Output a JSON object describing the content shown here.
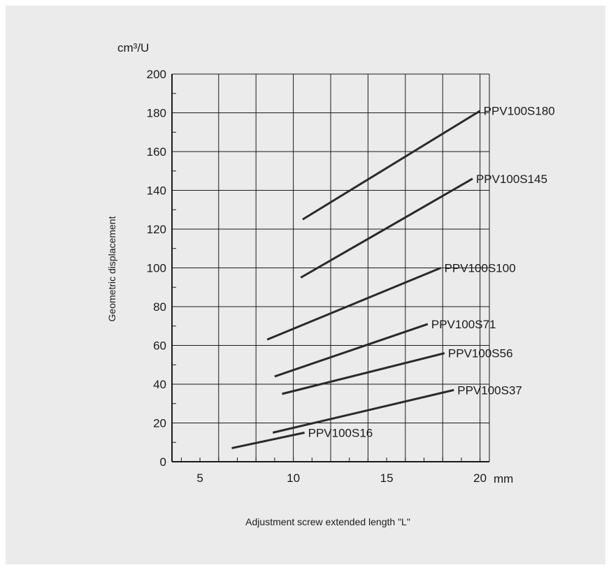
{
  "chart_data": {
    "type": "line",
    "xlabel": "Adjustment screw extended length \"L\"",
    "ylabel": "Geometric displacement",
    "x_unit": "mm",
    "y_unit": "cm³/U",
    "xlim": [
      3.5,
      20.5
    ],
    "ylim": [
      0,
      200
    ],
    "x_ticks": [
      5,
      10,
      15,
      20
    ],
    "y_ticks": [
      0,
      20,
      40,
      60,
      80,
      100,
      120,
      140,
      160,
      180,
      200
    ],
    "grid": true,
    "series": [
      {
        "name": "PPV100S180",
        "x": [
          10.5,
          20.0
        ],
        "y": [
          125,
          181
        ]
      },
      {
        "name": "PPV100S145",
        "x": [
          10.4,
          19.6
        ],
        "y": [
          95,
          146
        ]
      },
      {
        "name": "PPV100S100",
        "x": [
          8.6,
          17.9
        ],
        "y": [
          63,
          100
        ]
      },
      {
        "name": "PPV100S71",
        "x": [
          9.0,
          17.2
        ],
        "y": [
          44,
          71
        ]
      },
      {
        "name": "PPV100S56",
        "x": [
          9.4,
          18.1
        ],
        "y": [
          35,
          56
        ]
      },
      {
        "name": "PPV100S37",
        "x": [
          8.9,
          18.6
        ],
        "y": [
          15,
          37
        ]
      },
      {
        "name": "PPV100S16",
        "x": [
          6.7,
          10.6
        ],
        "y": [
          7,
          15
        ]
      }
    ]
  }
}
